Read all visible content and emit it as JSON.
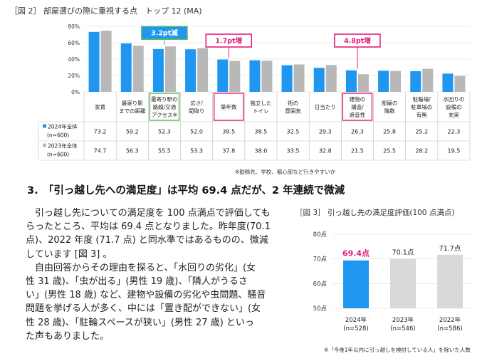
{
  "figure2": {
    "title": "［図 2］ 部屋選びの際に重視する点　トップ 12 (MA)",
    "note": "※勤務先、学校、都心部など行きやすいか",
    "callouts": [
      "3.2pt減",
      "1.7pt増",
      "4.8pt増"
    ],
    "colors": {
      "s2024": "#1f97f0",
      "s2023": "#b8b8b8",
      "callout_green": "#5cb85c",
      "callout_pink": "#e2207a"
    }
  },
  "section": {
    "title": "3.　「引っ越し先への満足度」は平均 69.4 点だが、2 年連続で微減"
  },
  "body": {
    "paragraph1": [
      "引っ越し先についての満足度を 100 点満点で評価しても",
      "らったところ、平均は 69.4 点となりました。昨年度(70.1",
      "点)、2022 年度 (71.7 点) と同水準ではあるものの、微減",
      "しています [図 3] 。"
    ],
    "paragraph2": [
      "自由回答からその理由を探ると、「水回りの劣化」(女",
      "性 31 歳)、「虫が出る」(男性 19 歳)、「隣人がうるさ",
      "い」(男性 18 歳) など、建物や設備の劣化や虫問題、騒音",
      "問題を挙げる人が多く、中には「置き配ができない」(女",
      "性 28 歳)、「駐輪スペースが狭い」(男性 27 歳) といっ",
      "た声もありました。"
    ]
  },
  "figure3": {
    "title": "［図 3］ 引っ越し先の満足度評価(100 点満点)",
    "note": "※「今後1年以内に引っ越しを検討している人」を除いた人数",
    "colors": {
      "highlight": "#1f97f0",
      "normal": "#d9d9d9",
      "label_highlight": "#e2207a"
    }
  },
  "chart_data": [
    {
      "type": "bar",
      "categories": [
        [
          "家賃"
        ],
        [
          "最寄り駅",
          "までの距離"
        ],
        [
          "最寄り駅の",
          "路線/交通",
          "アクセス※"
        ],
        [
          "広さ/",
          "間取り"
        ],
        [
          "築年数"
        ],
        [
          "独立した",
          "トイレ"
        ],
        [
          "街の",
          "雰囲気"
        ],
        [
          "日当たり"
        ],
        [
          "建物の",
          "構造/",
          "遮音性"
        ],
        [
          "部屋の",
          "階数"
        ],
        [
          "駐輪場/",
          "駐車場の",
          "有無"
        ],
        [
          "水回りの",
          "設備の",
          "充実"
        ]
      ],
      "series": [
        {
          "name": [
            "2024年全体",
            "(n=600)"
          ],
          "values": [
            73.2,
            59.2,
            52.3,
            52.0,
            39.5,
            38.5,
            32.5,
            29.3,
            26.3,
            25.8,
            25.2,
            22.3
          ]
        },
        {
          "name": [
            "2023年全体",
            "(n=600)"
          ],
          "values": [
            74.7,
            56.3,
            55.5,
            53.3,
            37.8,
            38.0,
            33.5,
            32.8,
            21.5,
            25.5,
            28.2,
            19.5
          ]
        }
      ],
      "ylim": [
        0,
        80
      ],
      "yticks": [
        0,
        20,
        40,
        60,
        80
      ],
      "ytick_labels": [
        "0%",
        "20%",
        "40%",
        "60%",
        "80%"
      ],
      "table": true,
      "highlighted_categories": [
        2,
        4,
        8
      ]
    },
    {
      "type": "bar",
      "categories": [
        [
          "2024年",
          "(n=528)"
        ],
        [
          "2023年",
          "(n=546)"
        ],
        [
          "2022年",
          "(n=586)"
        ]
      ],
      "values": [
        69.4,
        70.1,
        71.7
      ],
      "value_labels": [
        "69.4点",
        "70.1点",
        "71.7点"
      ],
      "ylim": [
        50,
        80
      ],
      "yticks": [
        50,
        60,
        70,
        80
      ],
      "ytick_labels": [
        "50点",
        "60点",
        "70点",
        "80点"
      ],
      "highlight_index": 0
    }
  ]
}
